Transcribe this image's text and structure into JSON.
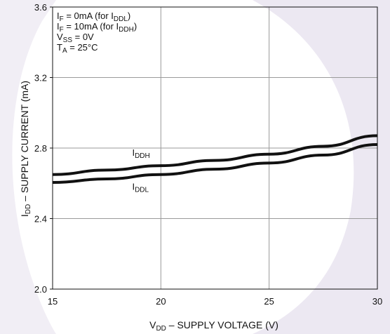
{
  "chart_data": {
    "type": "line",
    "x_axis": {
      "label_main": "V",
      "label_sub": "DD",
      "label_rest": " – SUPPLY VOLTAGE (V)",
      "range": [
        15,
        30
      ],
      "ticks": [
        15,
        20,
        25,
        30
      ],
      "tick_labels": [
        "15",
        "20",
        "25",
        "30"
      ]
    },
    "y_axis": {
      "label_main": "I",
      "label_sub": "DD",
      "label_rest": " – SUPPLY CURRENT (mA)",
      "range": [
        2.0,
        3.6
      ],
      "ticks": [
        2.0,
        2.4,
        2.8,
        3.2,
        3.6
      ],
      "tick_labels": [
        "2.0",
        "2.4",
        "2.8",
        "3.2",
        "3.6"
      ]
    },
    "grid": true,
    "series": [
      {
        "name": "IDDH",
        "label_main": "I",
        "label_sub": "DDH",
        "x": [
          15,
          17.5,
          20,
          22.5,
          25,
          27.5,
          30
        ],
        "y": [
          2.65,
          2.675,
          2.7,
          2.73,
          2.765,
          2.81,
          2.87
        ]
      },
      {
        "name": "IDDL",
        "label_main": "I",
        "label_sub": "DDL",
        "x": [
          15,
          17.5,
          20,
          22.5,
          25,
          27.5,
          30
        ],
        "y": [
          2.605,
          2.625,
          2.65,
          2.68,
          2.715,
          2.76,
          2.82
        ]
      }
    ],
    "conditions": [
      {
        "main": "I",
        "sub": "F",
        "rest": " = 0mA (for I",
        "sub2": "DDL",
        "end": ")"
      },
      {
        "main": "I",
        "sub": "F",
        "rest": " = 10mA (for I",
        "sub2": "DDH",
        "end": ")"
      },
      {
        "main": "V",
        "sub": "SS",
        "rest": " = 0V",
        "sub2": "",
        "end": ""
      },
      {
        "main": "T",
        "sub": "A",
        "rest": " = 25°C",
        "sub2": "",
        "end": ""
      }
    ],
    "colors": {
      "line": "#111111",
      "grid": "#9a9a9a",
      "watermark": "#ece8f2"
    }
  }
}
